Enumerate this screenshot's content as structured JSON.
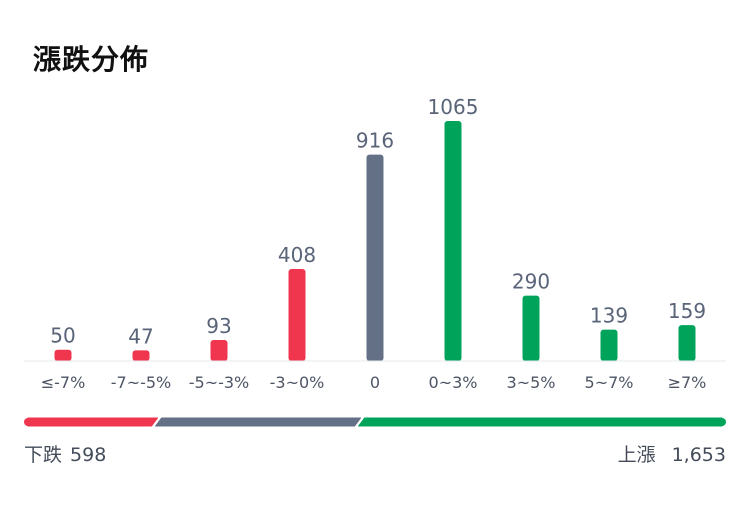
{
  "title": "漲跌分佈",
  "chart_data": {
    "type": "bar",
    "categories": [
      "≤-7%",
      "-7~-5%",
      "-5~-3%",
      "-3~0%",
      "0",
      "0~3%",
      "3~5%",
      "5~7%",
      "≥7%"
    ],
    "values": [
      50,
      47,
      93,
      408,
      916,
      1065,
      290,
      139,
      159
    ],
    "bar_colors": [
      "#f0364f",
      "#f0364f",
      "#f0364f",
      "#f0364f",
      "#637085",
      "#00a35a",
      "#00a35a",
      "#00a35a",
      "#00a35a"
    ],
    "ylim": [
      0,
      1065
    ]
  },
  "summary": {
    "down_label": "下跌",
    "down_count": "598",
    "up_label": "上漲",
    "up_count": "1,653",
    "down_value": 598,
    "flat_value": 916,
    "up_value": 1653
  },
  "colors": {
    "down": "#f0364f",
    "flat": "#637085",
    "up": "#00a35a",
    "axis_text": "#4d5565",
    "value_text": "#5a6478"
  }
}
